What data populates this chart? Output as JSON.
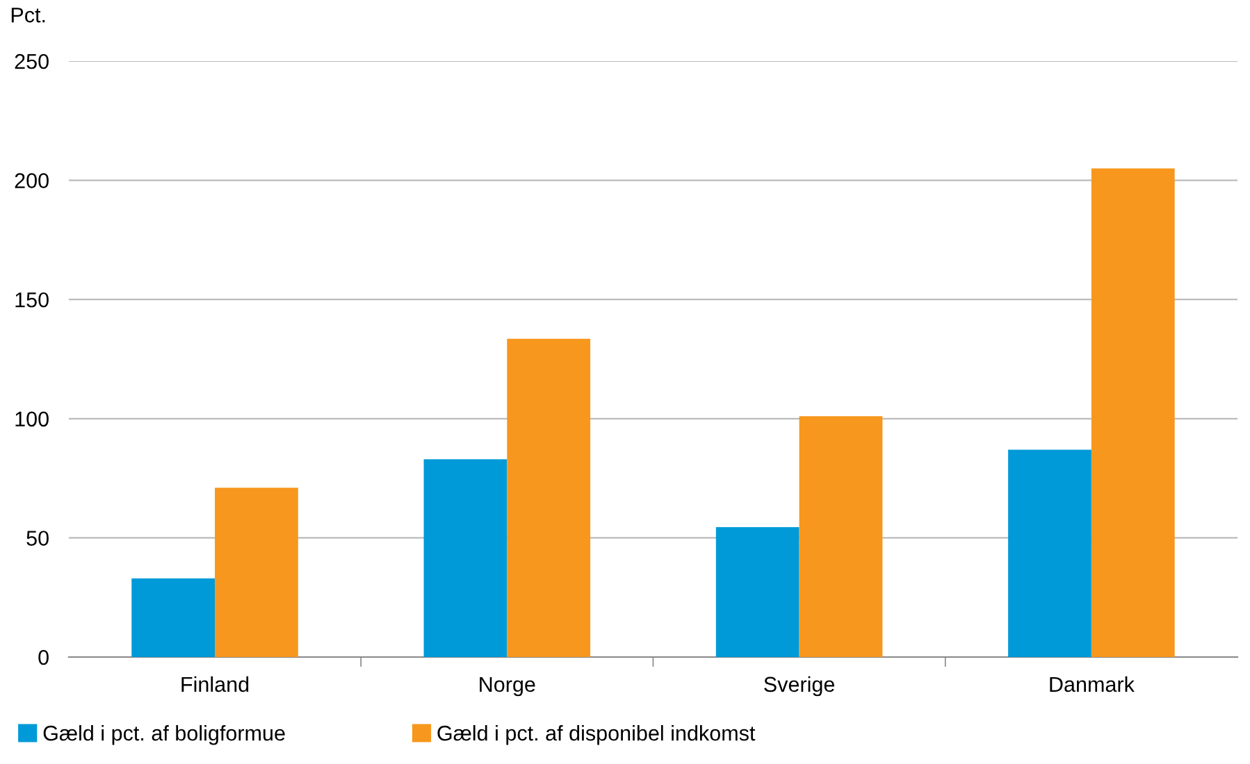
{
  "chart_data": {
    "type": "bar",
    "ylabel": "Pct.",
    "categories": [
      "Finland",
      "Norge",
      "Sverige",
      "Danmark"
    ],
    "series": [
      {
        "name": "Gæld i pct. af boligformue",
        "color": "#009ad8",
        "values": [
          33,
          83,
          54.5,
          87
        ]
      },
      {
        "name": "Gæld i pct. af disponibel indkomst",
        "color": "#f7971d",
        "values": [
          71,
          133.5,
          101,
          205
        ]
      }
    ],
    "ylim": [
      0,
      250
    ],
    "yticks": [
      0,
      50,
      100,
      150,
      200,
      250
    ],
    "grid": "y",
    "legend": "bottom left"
  }
}
